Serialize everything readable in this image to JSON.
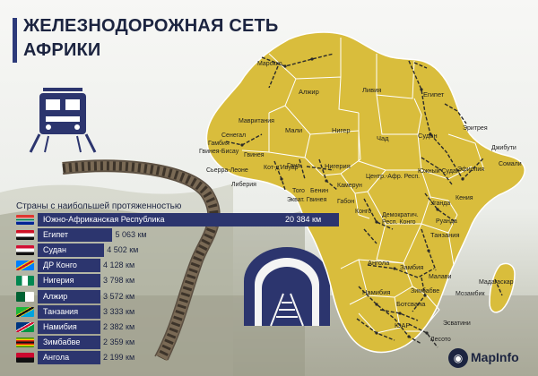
{
  "title": {
    "line1": "ЖЕЛЕЗНОДОРОЖНАЯ СЕТЬ",
    "line2": "АФРИКИ"
  },
  "chart_heading": "Страны с наибольшей протяженностью",
  "brand": "MapInfo",
  "colors": {
    "land": "#d9bd3c",
    "border": "#ffffff",
    "rail": "#2a2a2a",
    "bar": "#2c356e",
    "title": "#1c2440",
    "title_accent": "#2d3a7a"
  },
  "countries": [
    "Марокко",
    "Алжир",
    "Ливия",
    "Египет",
    "Мавритания",
    "Мали",
    "Нигер",
    "Чад",
    "Судан",
    "Эритрея",
    "Джибути",
    "Сомали",
    "Эфиопия",
    "Южный Судан",
    "Сенегал",
    "Гамбия",
    "Гвинея-Бисау",
    "Гвинея",
    "Сьерра-Леоне",
    "Либерия",
    "Кот-д'Ивуар",
    "Гана",
    "Того",
    "Бенин",
    "Нигерия",
    "Камерун",
    "Экват. Гвинея",
    "Габон",
    "Центр.-Афр. Респ.",
    "Конго",
    "Демократич. Респ. Конго",
    "Уганда",
    "Кения",
    "Руанда",
    "Танзания",
    "Ангола",
    "Замбия",
    "Малави",
    "Мозамбик",
    "Намибия",
    "Ботсвана",
    "Зимбабве",
    "ЮАР",
    "Эсватини",
    "Лесото",
    "Мадагаскар"
  ],
  "chart_data": {
    "type": "bar",
    "orientation": "horizontal",
    "unit": "км",
    "categories": [
      "Южно-Африканская Республика",
      "Египет",
      "Судан",
      "ДР Конго",
      "Нигерия",
      "Алжир",
      "Танзания",
      "Намибия",
      "Зимбабве",
      "Ангола"
    ],
    "values": [
      20384,
      5063,
      4502,
      4128,
      3798,
      3572,
      3333,
      2382,
      2359,
      2199
    ],
    "value_labels": [
      "20 384 км",
      "5 063 км",
      "4 502 км",
      "4 128 км",
      "3 798 км",
      "3 572 км",
      "3 333 км",
      "2 382 км",
      "2 359 км",
      "2 199 км"
    ],
    "flags": [
      "south-africa-flag",
      "egypt-flag",
      "sudan-flag",
      "dr-congo-flag",
      "nigeria-flag",
      "algeria-flag",
      "tanzania-flag",
      "namibia-flag",
      "zimbabwe-flag",
      "angola-flag"
    ]
  }
}
